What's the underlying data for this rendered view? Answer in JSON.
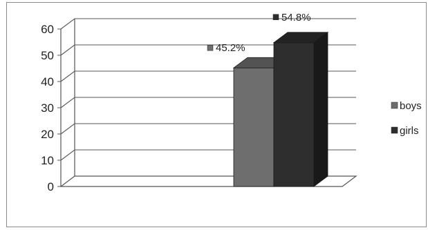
{
  "chart_data": {
    "type": "bar",
    "style": "3d-column",
    "categories": [
      ""
    ],
    "series": [
      {
        "name": "boys",
        "values": [
          45.2
        ],
        "data_label": "45.2%",
        "color": "#6e6e6e"
      },
      {
        "name": "girls",
        "values": [
          54.8
        ],
        "data_label": "54.8%",
        "color": "#2e2e2e"
      }
    ],
    "title": "",
    "xlabel": "",
    "ylabel": "",
    "ylim": [
      0,
      60
    ],
    "yticks": [
      0,
      10,
      20,
      30,
      40,
      50,
      60
    ],
    "ytick_labels": [
      "0",
      "10",
      "20",
      "30",
      "40",
      "50",
      "60"
    ],
    "grid": true,
    "legend_position": "right"
  }
}
